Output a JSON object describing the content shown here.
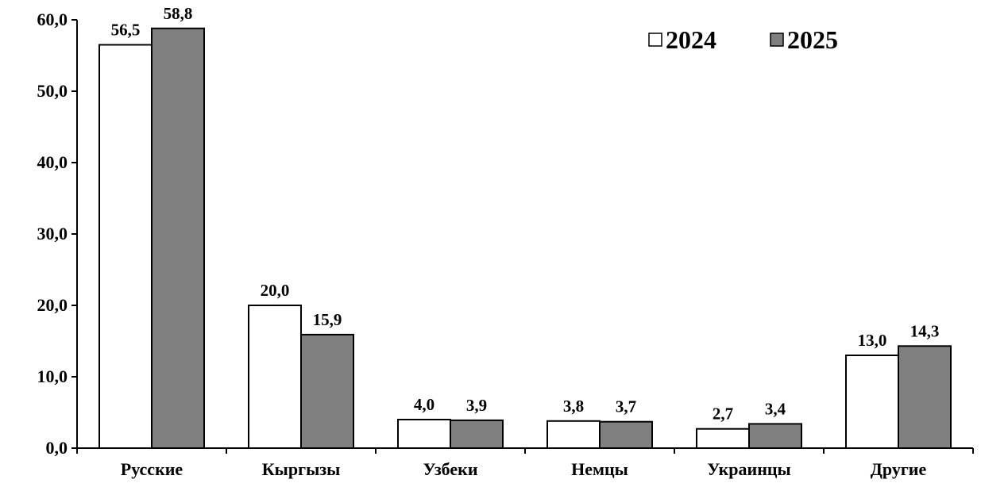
{
  "chart_data": {
    "type": "bar",
    "categories": [
      "Русские",
      "Кыргызы",
      "Узбеки",
      "Немцы",
      "Украинцы",
      "Другие"
    ],
    "series": [
      {
        "name": "2024",
        "values": [
          56.5,
          20.0,
          4.0,
          3.8,
          2.7,
          13.0
        ],
        "labels": [
          "56,5",
          "20,0",
          "4,0",
          "3,8",
          "2,7",
          "13,0"
        ],
        "color": "#ffffff"
      },
      {
        "name": "2025",
        "values": [
          58.8,
          15.9,
          3.9,
          3.7,
          3.4,
          14.3
        ],
        "labels": [
          "58,8",
          "15,9",
          "3,9",
          "3,7",
          "3,4",
          "14,3"
        ],
        "color": "#808080"
      }
    ],
    "y_ticks": [
      0,
      10,
      20,
      30,
      40,
      50,
      60
    ],
    "y_tick_labels": [
      "0,0",
      "10,0",
      "20,0",
      "30,0",
      "40,0",
      "50,0",
      "60,0"
    ],
    "ylim": [
      0,
      60
    ],
    "grid": false,
    "legend_position": "top-right"
  }
}
